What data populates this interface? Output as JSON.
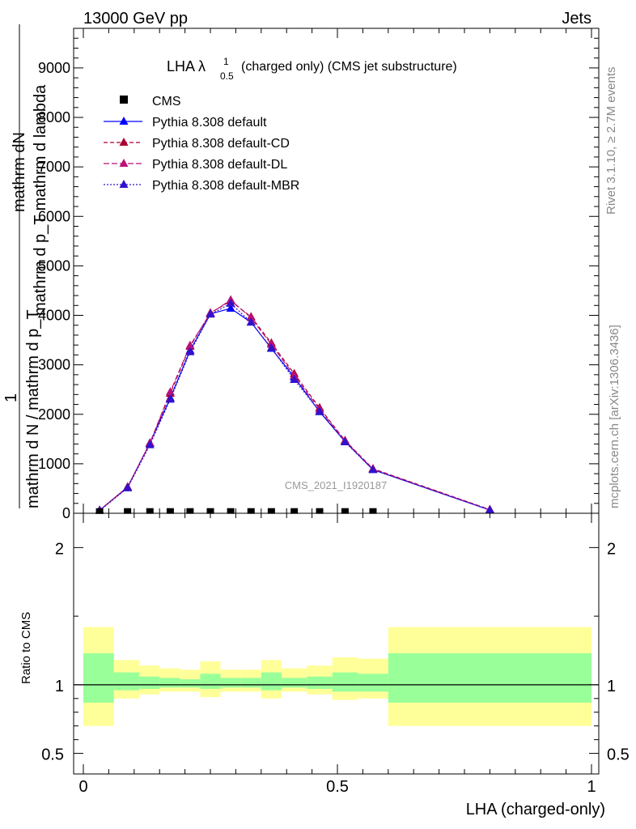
{
  "header": {
    "left": "13000 GeV pp",
    "right": "Jets"
  },
  "side": {
    "rivet": "Rivet 3.1.10, ≥ 2.7M events",
    "mcplots": "mcplots.cern.ch [arXiv:1306.3436]"
  },
  "chart_data": {
    "type": "line",
    "title_main": "LHA λ",
    "title_sup": "1",
    "title_sub": "0.5",
    "title_rest": " (charged only) (CMS jet substructure)",
    "xlabel": "LHA (charged-only)",
    "ylabel_num": "mathrm dN",
    "ylabel_den": "mathrm d p_T mathrm d lambda",
    "ylabel_one": "1",
    "ylabel_den2": "mathrm d N / mathrm d p_T",
    "ylabel_p": "p",
    "ylabel_t": "T",
    "watermark": "CMS_2021_I1920187",
    "ratio_ylabel": "Ratio to CMS",
    "xlim": [
      0,
      1
    ],
    "ylim_main": [
      0,
      9800
    ],
    "ylim_ratio": [
      0.35,
      2.25
    ],
    "main_y_ticks": [
      "0",
      "1000",
      "2000",
      "3000",
      "4000",
      "5000",
      "6000",
      "7000",
      "8000",
      "9000"
    ],
    "x_ticks": [
      "0",
      "0.5",
      "1"
    ],
    "ratio_y_ticks": [
      "0.5",
      "1",
      "2"
    ],
    "data_x": [
      0.032,
      0.087,
      0.131,
      0.171,
      0.21,
      0.25,
      0.29,
      0.33,
      0.37,
      0.415,
      0.465,
      0.515,
      0.57
    ],
    "data_y": [
      3,
      5,
      5,
      5,
      5,
      5,
      5,
      5,
      5,
      5,
      5,
      5,
      5
    ],
    "mc_x": [
      0.032,
      0.087,
      0.131,
      0.171,
      0.21,
      0.25,
      0.29,
      0.33,
      0.37,
      0.415,
      0.465,
      0.515,
      0.57,
      0.8
    ],
    "series": [
      {
        "name": "CMS",
        "color": "#000000",
        "marker": "square",
        "dash": "none"
      },
      {
        "name": "Pythia 8.308 default",
        "color": "#0000ff",
        "marker": "triangle",
        "dash": "solid",
        "values": [
          60,
          530,
          1420,
          2330,
          3290,
          4030,
          4140,
          3860,
          3330,
          2750,
          2050,
          1450,
          880,
          65
        ]
      },
      {
        "name": "Pythia 8.308 default-CD",
        "color": "#aa0033",
        "marker": "triangle",
        "dash": "5,3",
        "values": [
          60,
          530,
          1410,
          2420,
          3370,
          4050,
          4290,
          3970,
          3440,
          2820,
          2130,
          1470,
          900,
          75
        ]
      },
      {
        "name": "Pythia 8.308 default-DL",
        "color": "#bb1177",
        "marker": "triangle",
        "dash": "7,3",
        "values": [
          60,
          520,
          1420,
          2450,
          3390,
          4040,
          4310,
          3950,
          3410,
          2780,
          2100,
          1460,
          890,
          70
        ]
      },
      {
        "name": "Pythia 8.308 default-MBR",
        "color": "#3311cc",
        "marker": "triangle",
        "dash": "2,2",
        "values": [
          55,
          510,
          1380,
          2300,
          3260,
          4020,
          4240,
          3860,
          3340,
          2700,
          2060,
          1440,
          880,
          65
        ]
      }
    ],
    "ratio_bands": {
      "edges": [
        0.0,
        0.06,
        0.11,
        0.15,
        0.19,
        0.23,
        0.27,
        0.31,
        0.35,
        0.39,
        0.44,
        0.49,
        0.54,
        0.6,
        1.0
      ],
      "yellow": [
        [
          0.7,
          1.42
        ],
        [
          0.9,
          1.18
        ],
        [
          0.93,
          1.14
        ],
        [
          0.95,
          1.12
        ],
        [
          0.95,
          1.11
        ],
        [
          0.91,
          1.17
        ],
        [
          0.95,
          1.11
        ],
        [
          0.95,
          1.11
        ],
        [
          0.9,
          1.18
        ],
        [
          0.95,
          1.12
        ],
        [
          0.93,
          1.14
        ],
        [
          0.89,
          1.2
        ],
        [
          0.9,
          1.19
        ],
        [
          0.7,
          1.42
        ]
      ],
      "green": [
        [
          0.87,
          1.23
        ],
        [
          0.96,
          1.09
        ],
        [
          0.97,
          1.06
        ],
        [
          0.98,
          1.05
        ],
        [
          0.98,
          1.04
        ],
        [
          0.97,
          1.08
        ],
        [
          0.98,
          1.05
        ],
        [
          0.98,
          1.05
        ],
        [
          0.96,
          1.09
        ],
        [
          0.98,
          1.05
        ],
        [
          0.97,
          1.06
        ],
        [
          0.95,
          1.09
        ],
        [
          0.95,
          1.08
        ],
        [
          0.87,
          1.23
        ]
      ]
    }
  }
}
